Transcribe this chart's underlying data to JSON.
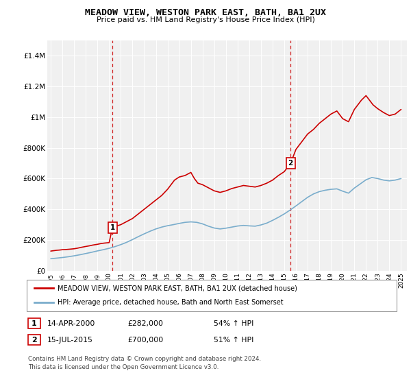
{
  "title": "MEADOW VIEW, WESTON PARK EAST, BATH, BA1 2UX",
  "subtitle": "Price paid vs. HM Land Registry's House Price Index (HPI)",
  "legend_line1": "MEADOW VIEW, WESTON PARK EAST, BATH, BA1 2UX (detached house)",
  "legend_line2": "HPI: Average price, detached house, Bath and North East Somerset",
  "footnote": "Contains HM Land Registry data © Crown copyright and database right 2024.\nThis data is licensed under the Open Government Licence v3.0.",
  "ann1": {
    "num": "1",
    "date": "14-APR-2000",
    "price": "£282,000",
    "hpi": "54% ↑ HPI",
    "x_year": 2000.28,
    "y_val": 282000
  },
  "ann2": {
    "num": "2",
    "date": "15-JUL-2015",
    "price": "£700,000",
    "hpi": "51% ↑ HPI",
    "x_year": 2015.54,
    "y_val": 700000
  },
  "red_color": "#cc0000",
  "blue_color": "#7aadcc",
  "vline_color": "#cc0000",
  "bg_color": "#f0f0f0",
  "ylim": [
    0,
    1500000
  ],
  "xlim_start": 1994.7,
  "xlim_end": 2025.5,
  "yticks": [
    0,
    200000,
    400000,
    600000,
    800000,
    1000000,
    1200000,
    1400000
  ],
  "ytick_labels": [
    "£0",
    "£200K",
    "£400K",
    "£600K",
    "£800K",
    "£1M",
    "£1.2M",
    "£1.4M"
  ],
  "xticks": [
    1995,
    1996,
    1997,
    1998,
    1999,
    2000,
    2001,
    2002,
    2003,
    2004,
    2005,
    2006,
    2007,
    2008,
    2009,
    2010,
    2011,
    2012,
    2013,
    2014,
    2015,
    2016,
    2017,
    2018,
    2019,
    2020,
    2021,
    2022,
    2023,
    2024,
    2025
  ],
  "red_x": [
    1995.0,
    1995.2,
    1995.5,
    1995.8,
    1996.0,
    1996.3,
    1996.6,
    1997.0,
    1997.3,
    1997.6,
    1998.0,
    1998.3,
    1998.6,
    1999.0,
    1999.3,
    1999.6,
    2000.0,
    2000.28,
    2000.6,
    2001.0,
    2001.5,
    2002.0,
    2002.5,
    2003.0,
    2003.5,
    2004.0,
    2004.5,
    2005.0,
    2005.3,
    2005.6,
    2006.0,
    2006.5,
    2007.0,
    2007.3,
    2007.6,
    2008.0,
    2008.5,
    2009.0,
    2009.5,
    2010.0,
    2010.5,
    2011.0,
    2011.5,
    2012.0,
    2012.5,
    2013.0,
    2013.5,
    2014.0,
    2014.5,
    2015.0,
    2015.54,
    2016.0,
    2016.5,
    2017.0,
    2017.5,
    2018.0,
    2018.5,
    2019.0,
    2019.5,
    2020.0,
    2020.5,
    2021.0,
    2021.3,
    2021.6,
    2022.0,
    2022.3,
    2022.6,
    2023.0,
    2023.5,
    2024.0,
    2024.5,
    2025.0
  ],
  "red_y": [
    128000,
    130000,
    133000,
    135000,
    137000,
    138000,
    140000,
    143000,
    147000,
    152000,
    158000,
    162000,
    167000,
    172000,
    177000,
    180000,
    183000,
    282000,
    290000,
    300000,
    320000,
    340000,
    370000,
    400000,
    430000,
    460000,
    490000,
    530000,
    560000,
    590000,
    610000,
    620000,
    640000,
    600000,
    570000,
    560000,
    540000,
    520000,
    510000,
    520000,
    535000,
    545000,
    555000,
    550000,
    545000,
    555000,
    570000,
    590000,
    620000,
    645000,
    700000,
    790000,
    840000,
    890000,
    920000,
    960000,
    990000,
    1020000,
    1040000,
    990000,
    970000,
    1050000,
    1080000,
    1110000,
    1140000,
    1110000,
    1080000,
    1055000,
    1030000,
    1010000,
    1020000,
    1050000
  ],
  "blue_x": [
    1995.0,
    1995.5,
    1996.0,
    1996.5,
    1997.0,
    1997.5,
    1998.0,
    1998.5,
    1999.0,
    1999.5,
    2000.0,
    2000.5,
    2001.0,
    2001.5,
    2002.0,
    2002.5,
    2003.0,
    2003.5,
    2004.0,
    2004.5,
    2005.0,
    2005.5,
    2006.0,
    2006.5,
    2007.0,
    2007.5,
    2008.0,
    2008.5,
    2009.0,
    2009.5,
    2010.0,
    2010.5,
    2011.0,
    2011.5,
    2012.0,
    2012.5,
    2013.0,
    2013.5,
    2014.0,
    2014.5,
    2015.0,
    2015.5,
    2016.0,
    2016.5,
    2017.0,
    2017.5,
    2018.0,
    2018.5,
    2019.0,
    2019.5,
    2020.0,
    2020.5,
    2021.0,
    2021.5,
    2022.0,
    2022.5,
    2023.0,
    2023.5,
    2024.0,
    2024.5,
    2025.0
  ],
  "blue_y": [
    78000,
    82000,
    86000,
    91000,
    97000,
    104000,
    112000,
    120000,
    129000,
    137000,
    146000,
    157000,
    170000,
    185000,
    203000,
    222000,
    240000,
    257000,
    272000,
    284000,
    293000,
    300000,
    308000,
    315000,
    318000,
    315000,
    305000,
    290000,
    278000,
    272000,
    277000,
    284000,
    291000,
    295000,
    292000,
    290000,
    298000,
    310000,
    328000,
    348000,
    370000,
    395000,
    422000,
    450000,
    478000,
    500000,
    515000,
    524000,
    530000,
    533000,
    518000,
    505000,
    538000,
    565000,
    592000,
    607000,
    600000,
    590000,
    585000,
    590000,
    600000
  ]
}
